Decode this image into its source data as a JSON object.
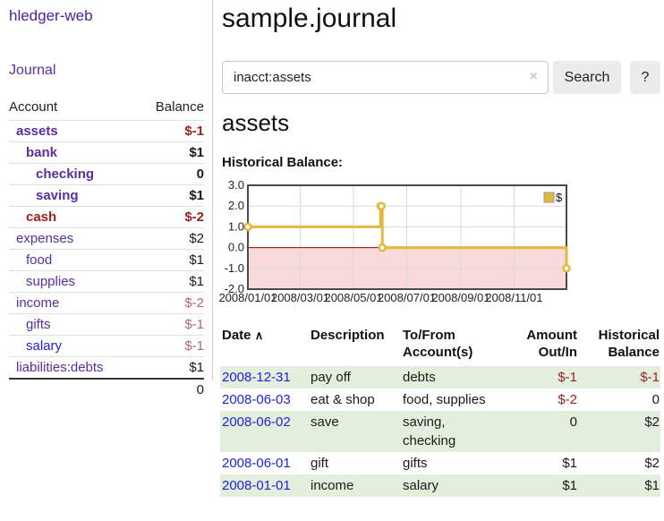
{
  "colors": {
    "purple_link": "#5b2d9e",
    "blue_link": "#2222dd",
    "negative_red": "#9d1f1f",
    "muted_rose": "#b4696e",
    "row_green": "#e2efdc",
    "chart_gold": "#e3b83d",
    "chart_pink": "#f9dada",
    "zero_line_red": "#990000"
  },
  "sidebar": {
    "brand": "hledger-web",
    "journal_link": "Journal",
    "table": {
      "account_header": "Account",
      "balance_header": "Balance",
      "rows": [
        {
          "account": "assets",
          "balance": "$-1",
          "indent": 1,
          "bold": true,
          "account_style": "purple",
          "balance_style": "neg"
        },
        {
          "account": "bank",
          "balance": "$1",
          "indent": 2,
          "bold": true,
          "account_style": "purple",
          "balance_style": "pos"
        },
        {
          "account": "checking",
          "balance": "0",
          "indent": 3,
          "bold": true,
          "account_style": "purple",
          "balance_style": "pos"
        },
        {
          "account": "saving",
          "balance": "$1",
          "indent": 3,
          "bold": true,
          "account_style": "purple",
          "balance_style": "pos"
        },
        {
          "account": "cash",
          "balance": "$-2",
          "indent": 2,
          "bold": true,
          "account_style": "red",
          "balance_style": "neg"
        },
        {
          "account": "expenses",
          "balance": "$2",
          "indent": 1,
          "bold": false,
          "account_style": "purple",
          "balance_style": "pos"
        },
        {
          "account": "food",
          "balance": "$1",
          "indent": 2,
          "bold": false,
          "account_style": "purple",
          "balance_style": "pos"
        },
        {
          "account": "supplies",
          "balance": "$1",
          "indent": 2,
          "bold": false,
          "account_style": "purple",
          "balance_style": "pos"
        },
        {
          "account": "income",
          "balance": "$-2",
          "indent": 1,
          "bold": false,
          "account_style": "purple",
          "balance_style": "rose"
        },
        {
          "account": "gifts",
          "balance": "$-1",
          "indent": 2,
          "bold": false,
          "account_style": "purple",
          "balance_style": "rose"
        },
        {
          "account": "salary",
          "balance": "$-1",
          "indent": 2,
          "bold": false,
          "account_style": "blue",
          "balance_style": "rose"
        },
        {
          "account": "liabilities:debts",
          "balance": "$1",
          "indent": 1,
          "bold": false,
          "account_style": "purple",
          "balance_style": "pos"
        }
      ],
      "total": "0"
    }
  },
  "header": {
    "title": "sample.journal"
  },
  "search": {
    "value": "inacct:assets",
    "clear_icon": "×",
    "button_label": "Search",
    "help_label": "?"
  },
  "account_page": {
    "heading": "assets",
    "chart_label": "Historical Balance:"
  },
  "chart_data": {
    "type": "line",
    "title": "Historical Balance:",
    "legend": [
      {
        "label": "$",
        "color": "#e3b83d"
      }
    ],
    "legend_position": "top-right",
    "grid": true,
    "step": true,
    "negative_region_shaded": true,
    "xlim_dates": [
      "2008-01-01",
      "2008-12-31"
    ],
    "ylim": [
      -2,
      3
    ],
    "y_ticks": [
      {
        "value": 3,
        "label": "3.0"
      },
      {
        "value": 2,
        "label": "2.0"
      },
      {
        "value": 1,
        "label": "1.0"
      },
      {
        "value": 0,
        "label": "0.0"
      },
      {
        "value": -1,
        "label": "-1.0"
      },
      {
        "value": -2,
        "label": "-2.0"
      }
    ],
    "x_ticks": [
      {
        "date": "2008-01-01",
        "label": "2008/01/01"
      },
      {
        "date": "2008-03-01",
        "label": "2008/03/01"
      },
      {
        "date": "2008-05-01",
        "label": "2008/05/01"
      },
      {
        "date": "2008-07-01",
        "label": "2008/07/01"
      },
      {
        "date": "2008-09-01",
        "label": "2008/09/01"
      },
      {
        "date": "2008-11-01",
        "label": "2008/11/01"
      }
    ],
    "series": [
      {
        "name": "$",
        "points": [
          {
            "date": "2008-01-01",
            "value": 1
          },
          {
            "date": "2008-06-01",
            "value": 2
          },
          {
            "date": "2008-06-02",
            "value": 2
          },
          {
            "date": "2008-06-03",
            "value": 0
          },
          {
            "date": "2008-12-31",
            "value": -1
          }
        ]
      }
    ]
  },
  "register": {
    "headers": {
      "date": "Date",
      "sort_icon": "∧",
      "description": "Description",
      "accounts": "To/From Account(s)",
      "amount": "Amount Out/In",
      "balance": "Historical Balance"
    },
    "rows": [
      {
        "date": "2008-12-31",
        "description": "pay off",
        "accounts": "debts",
        "amount": "$-1",
        "amount_negative": true,
        "balance": "$-1",
        "balance_negative": true
      },
      {
        "date": "2008-06-03",
        "description": "eat & shop",
        "accounts": "food, supplies",
        "amount": "$-2",
        "amount_negative": true,
        "balance": "0",
        "balance_negative": false
      },
      {
        "date": "2008-06-02",
        "description": "save",
        "accounts": "saving, checking",
        "amount": "0",
        "amount_negative": false,
        "balance": "$2",
        "balance_negative": false
      },
      {
        "date": "2008-06-01",
        "description": "gift",
        "accounts": "gifts",
        "amount": "$1",
        "amount_negative": false,
        "balance": "$2",
        "balance_negative": false
      },
      {
        "date": "2008-01-01",
        "description": "income",
        "accounts": "salary",
        "amount": "$1",
        "amount_negative": false,
        "balance": "$1",
        "balance_negative": false
      }
    ]
  }
}
